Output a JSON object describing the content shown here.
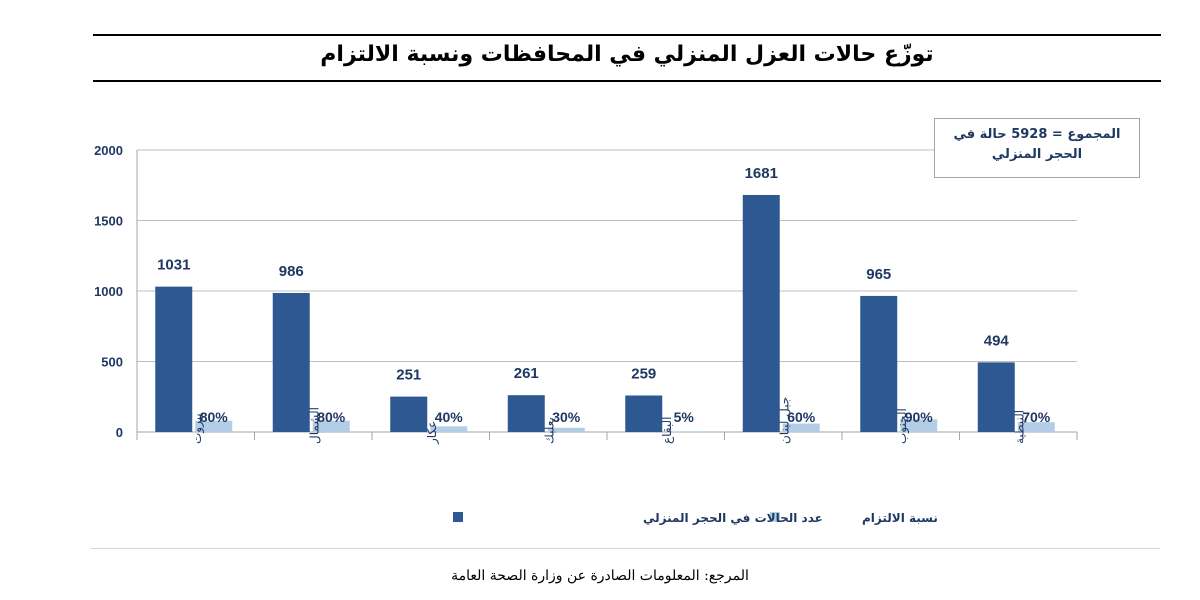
{
  "title": "توزّع حالات العزل المنزلي في المحافظات ونسبة الالتزام",
  "total_box": "المجموع = 5928 حالة في الحجر المنزلي",
  "source": "المرجع: المعلومات الصادرة عن وزارة الصحة العامة",
  "colors": {
    "cases": "#2e5891",
    "compliance": "#b3cde6",
    "axis_text": "#203864"
  },
  "chart_data": {
    "type": "bar",
    "categories": [
      "بيروت",
      "الشمال",
      "عكار",
      "بعلبك",
      "البقاع",
      "جبل لبنان",
      "الجنوب",
      "النبطية"
    ],
    "series": [
      {
        "name": "عدد الحالات في الحجر المنزلي",
        "values": [
          1031,
          986,
          251,
          261,
          259,
          1681,
          965,
          494
        ],
        "labels": [
          "1031",
          "986",
          "251",
          "261",
          "259",
          "1681",
          "965",
          "494"
        ]
      },
      {
        "name": "نسبة الالتزام",
        "values": [
          80,
          80,
          40,
          30,
          5,
          60,
          90,
          70
        ],
        "labels": [
          "80%",
          "80%",
          "40%",
          "30%",
          "5%",
          "60%",
          "90%",
          "70%"
        ]
      }
    ],
    "yticks": [
      "0",
      "500",
      "1000",
      "1500",
      "2000"
    ],
    "ylim": [
      0,
      2000
    ],
    "grid": true,
    "legend_position": "bottom"
  }
}
